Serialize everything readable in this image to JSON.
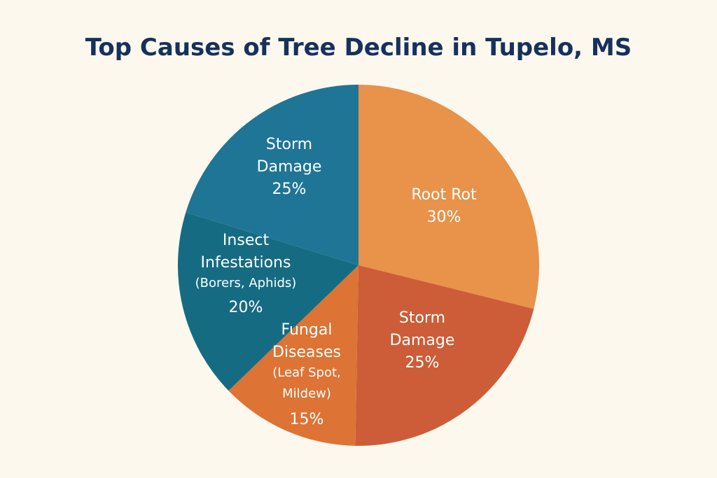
{
  "chart_data": {
    "type": "pie",
    "title": "Top Causes of Tree Decline in Tupelo, MS",
    "slices": [
      {
        "lines": [
          "Root Rot"
        ],
        "value": 30,
        "value_label": "30%",
        "color": "#e8924a"
      },
      {
        "lines": [
          "Storm",
          "Damage"
        ],
        "value": 25,
        "value_label": "25%",
        "color": "#cc5d38"
      },
      {
        "lines": [
          "Fungal",
          "Diseases",
          "(Leaf Spot,",
          "Mildew)"
        ],
        "value": 15,
        "value_label": "15%",
        "color": "#dd7334"
      },
      {
        "lines": [
          "Insect",
          "Infestations",
          "(Borers, Aphids)"
        ],
        "value": 20,
        "value_label": "20%",
        "color": "#156c82"
      },
      {
        "lines": [
          "Storm",
          "Damage"
        ],
        "value": 25,
        "value_label": "25%",
        "color": "#1f7596"
      }
    ]
  }
}
